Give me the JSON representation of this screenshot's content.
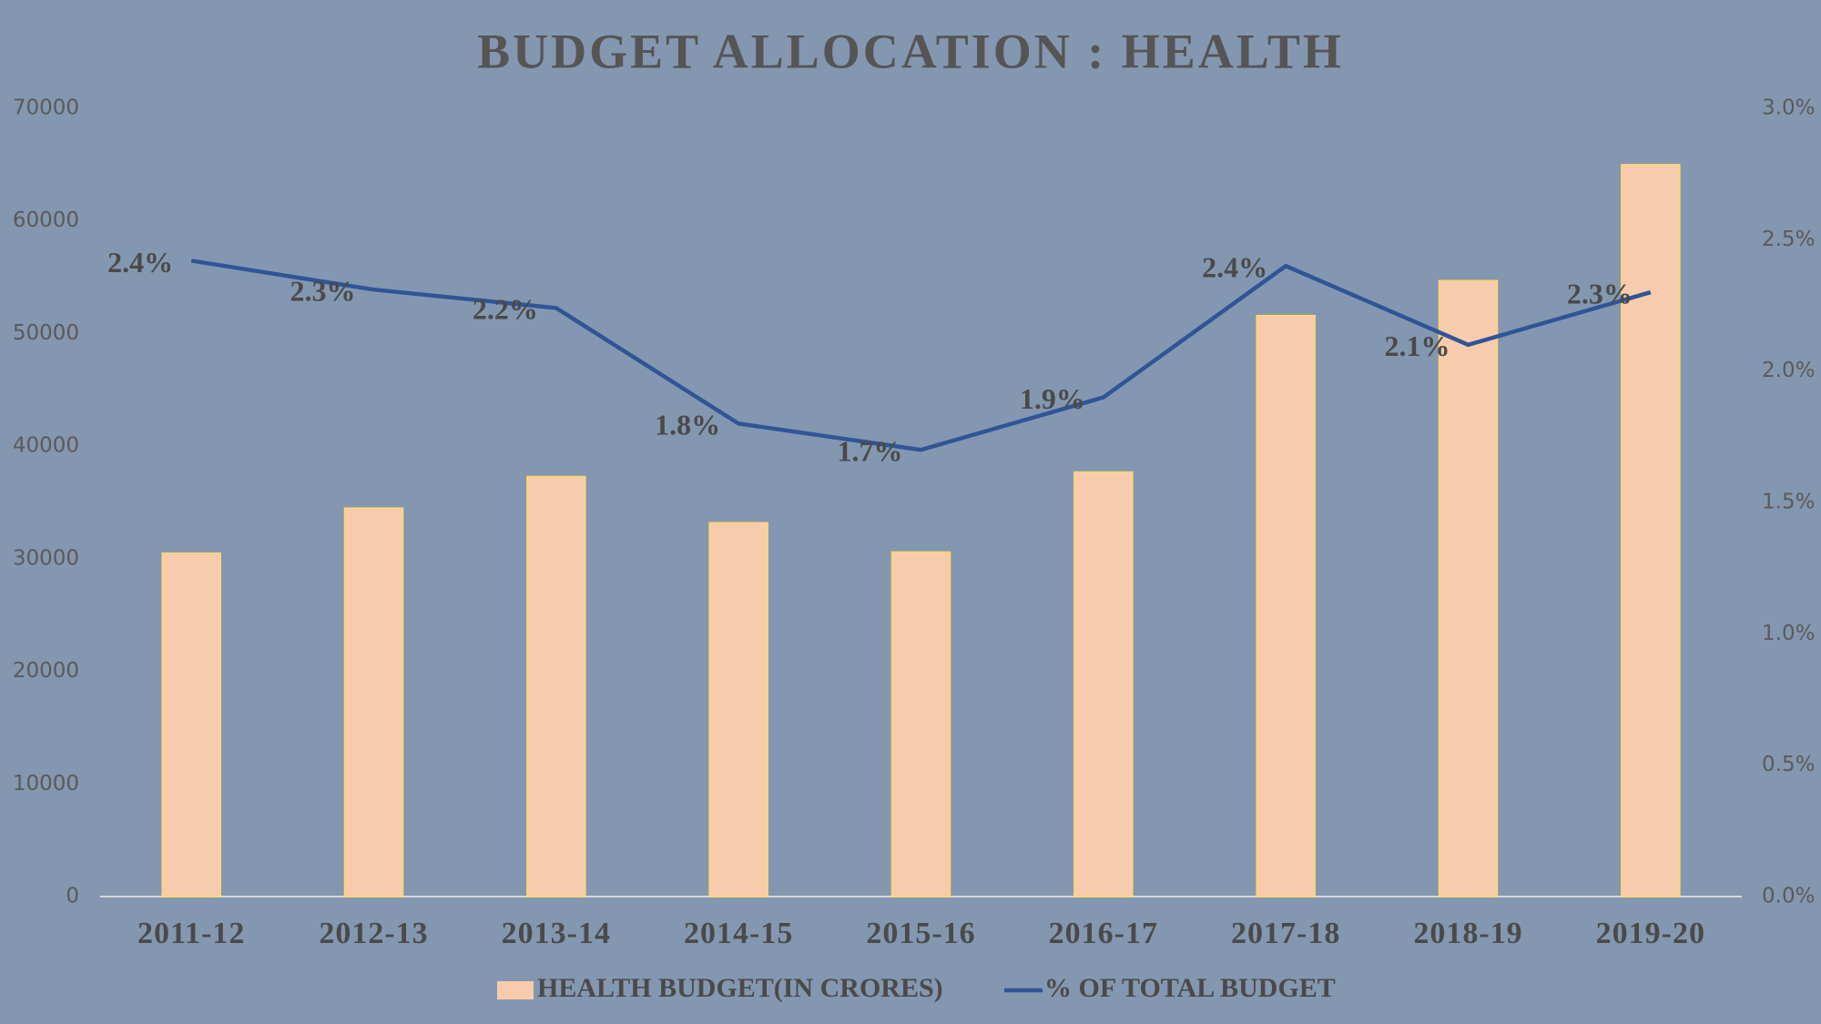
{
  "chart_data": {
    "type": "bar",
    "title": "BUDGET ALLOCATION : HEALTH",
    "categories": [
      "2011-12",
      "2012-13",
      "2013-14",
      "2014-15",
      "2015-16",
      "2016-17",
      "2017-18",
      "2018-19",
      "2019-20"
    ],
    "series": [
      {
        "name": "HEALTH BUDGET(IN CRORES)",
        "type": "bar",
        "color": "#f8cbad",
        "values": [
          30500,
          34500,
          37300,
          33200,
          30600,
          37700,
          51600,
          54700,
          65000
        ]
      },
      {
        "name": "% OF TOTAL BUDGET",
        "type": "line",
        "axis": "y2",
        "color": "#2f5597",
        "values": [
          2.42,
          2.31,
          2.24,
          1.8,
          1.7,
          1.9,
          2.4,
          2.1,
          2.3
        ],
        "value_labels": [
          "2.4%",
          "2.3%",
          "2.2%",
          "1.8%",
          "1.7%",
          "1.9%",
          "2.4%",
          "2.1%",
          "2.3%"
        ]
      }
    ],
    "ylim": [
      0,
      70000
    ],
    "yticks": [
      0,
      10000,
      20000,
      30000,
      40000,
      50000,
      60000,
      70000
    ],
    "y2lim": [
      0,
      3
    ],
    "y2ticks": [
      {
        "value": 0,
        "label": "0.0%"
      },
      {
        "value": 0.5,
        "label": "0.5%"
      },
      {
        "value": 1,
        "label": "1.0%"
      },
      {
        "value": 1.5,
        "label": "1.5%"
      },
      {
        "value": 2,
        "label": "2.0%"
      },
      {
        "value": 2.5,
        "label": "2.5%"
      },
      {
        "value": 3,
        "label": "3.0%"
      }
    ],
    "grid": false,
    "legend": "bottom"
  }
}
